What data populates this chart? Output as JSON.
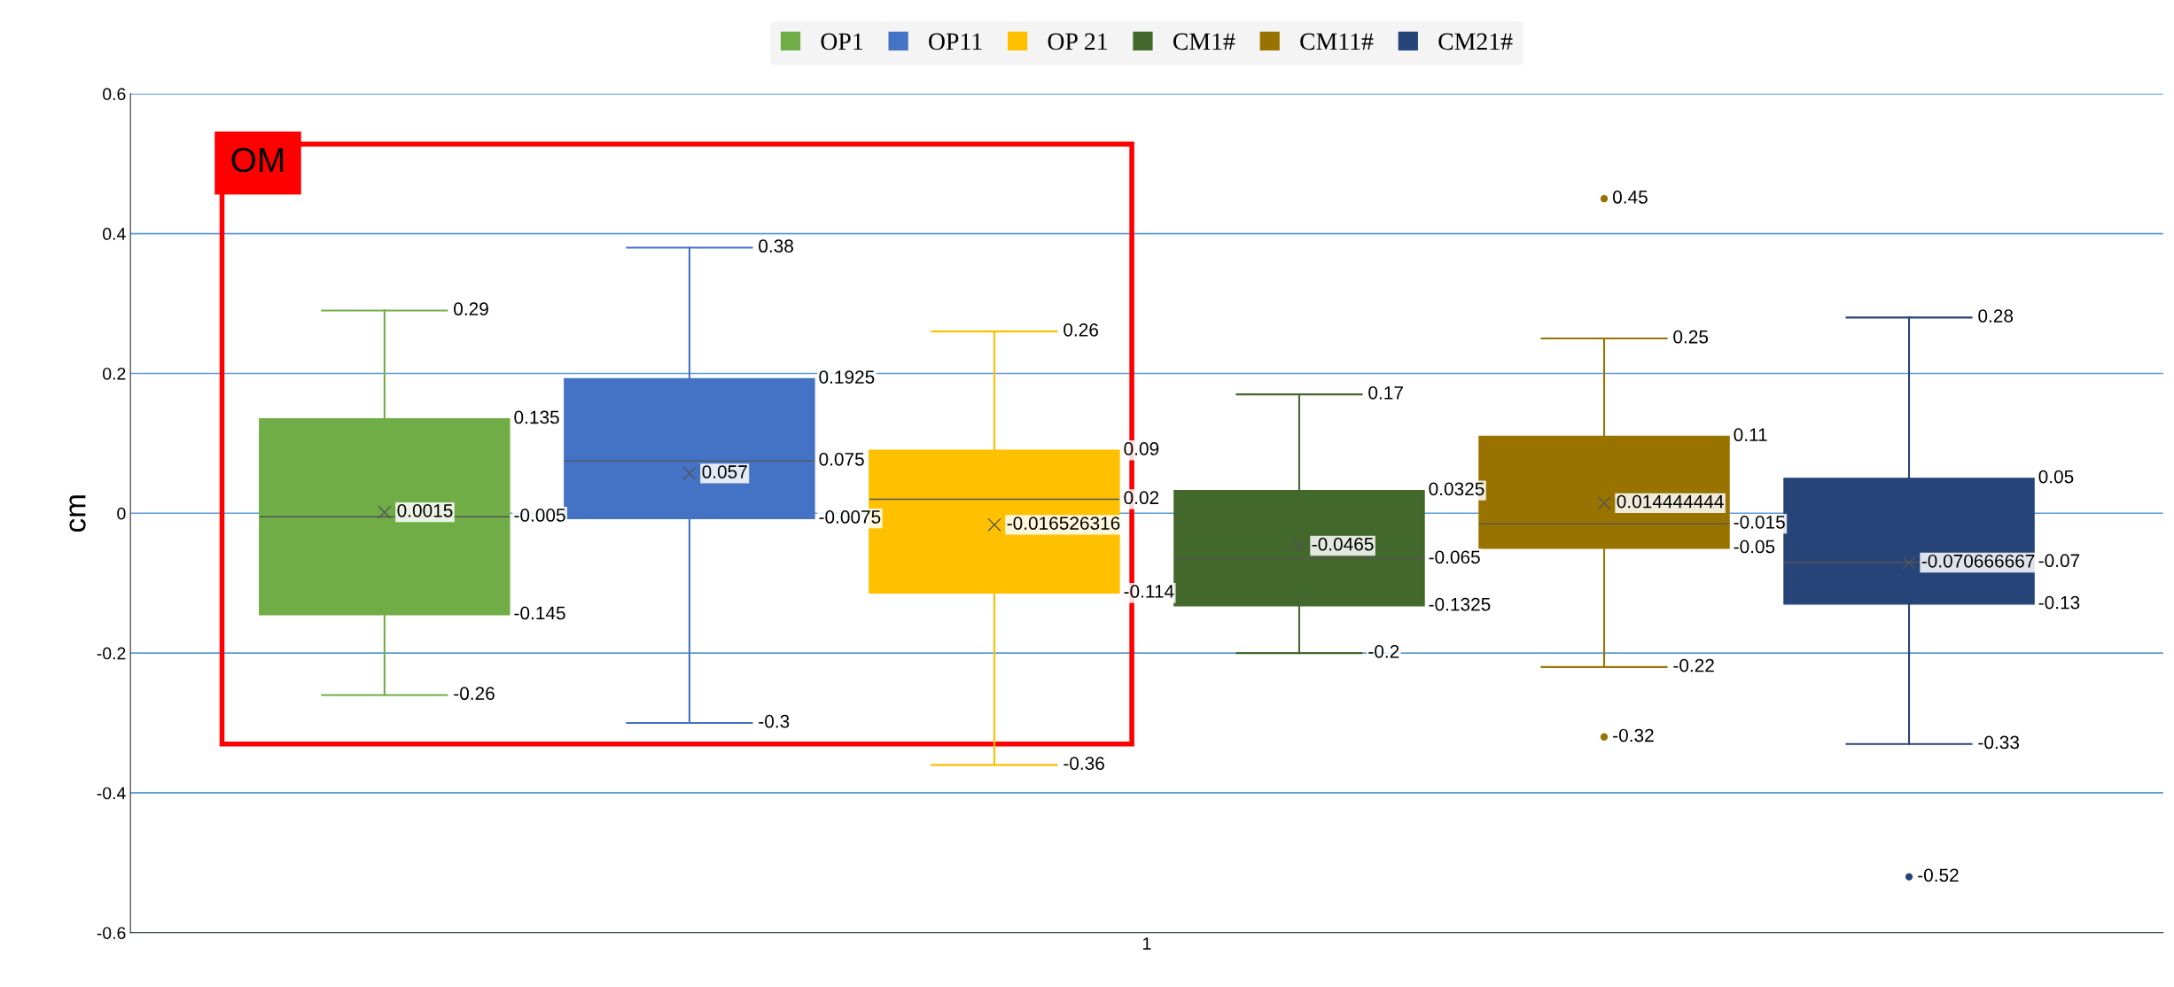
{
  "chart_data": {
    "type": "box",
    "categories": [
      "1"
    ],
    "ylabel": "cm",
    "ylim": [
      -0.6,
      0.6
    ],
    "yticks": [
      -0.6,
      -0.4,
      -0.2,
      0,
      0.2,
      0.4,
      0.6
    ],
    "grid": "y",
    "legend": "top",
    "annotations": [
      "OM"
    ],
    "series": [
      {
        "name": "OP1",
        "color": "#70ad47",
        "boxes": [
          {
            "low": -0.26,
            "q1": -0.145,
            "median": -0.005,
            "q3": 0.135,
            "high": 0.29,
            "mean": 0.0015
          }
        ],
        "value_labels": [
          [
            "0.29",
            "0.135",
            "-0.005",
            "-0.145",
            "-0.26",
            "0.0015"
          ]
        ]
      },
      {
        "name": "OP11",
        "color": "#4472c4",
        "boxes": [
          {
            "low": -0.3,
            "q1": -0.0075,
            "median": 0.075,
            "q3": 0.1925,
            "high": 0.38,
            "mean": 0.057
          }
        ],
        "value_labels": [
          [
            "0.38",
            "0.1925",
            "0.075",
            "-0.0075",
            "-0.3",
            "0.057"
          ]
        ]
      },
      {
        "name": "OP 21",
        "color": "#ffc000",
        "boxes": [
          {
            "low": -0.36,
            "q1": -0.114,
            "median": 0.02,
            "q3": 0.09,
            "high": 0.26,
            "mean": -0.016526316
          }
        ],
        "value_labels": [
          [
            "0.26",
            "0.09",
            "0.02",
            "-0.114",
            "-0.36",
            "-0.016526316"
          ]
        ]
      },
      {
        "name": "CM1#",
        "color": "#43682b",
        "boxes": [
          {
            "low": -0.2,
            "q1": -0.1325,
            "median": -0.065,
            "q3": 0.0325,
            "high": 0.17,
            "mean": -0.0465
          }
        ],
        "value_labels": [
          [
            "0.17",
            "0.0325",
            "-0.065",
            "-0.1325",
            "-0.2",
            "-0.0465"
          ]
        ]
      },
      {
        "name": "CM11#",
        "color": "#997300",
        "boxes": [
          {
            "low": -0.22,
            "q1": -0.05,
            "median": -0.015,
            "q3": 0.11,
            "high": 0.25,
            "mean": 0.014444444,
            "outliers": [
              0.45,
              -0.32
            ]
          }
        ],
        "value_labels": [
          [
            "0.25",
            "0.11",
            "-0.015",
            "-0.05",
            "-0.22",
            "0.014444444",
            "0.45",
            "-0.32"
          ]
        ]
      },
      {
        "name": "CM21#",
        "color": "#264478",
        "boxes": [
          {
            "low": -0.33,
            "q1": -0.13,
            "median": -0.07,
            "q3": 0.05,
            "high": 0.28,
            "mean": -0.070666667,
            "outliers": [
              -0.52
            ]
          }
        ],
        "value_labels": [
          [
            "0.28",
            "0.05",
            "-0.07",
            "-0.13",
            "-0.33",
            "-0.070666667",
            "-0.52"
          ]
        ]
      }
    ]
  }
}
